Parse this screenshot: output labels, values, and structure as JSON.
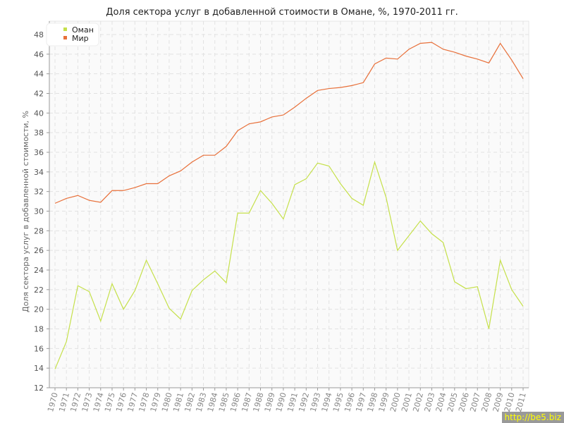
{
  "chart_data": {
    "type": "line",
    "title": "Доля сектора услуг в добавленной стоимости в Омане, %, 1970-2011 гг.",
    "ylabel": "Доля сектора услуг в добавленной стоимости, %",
    "xlabel": "",
    "ylim": [
      12,
      48
    ],
    "yticks": [
      12,
      14,
      16,
      18,
      20,
      22,
      24,
      26,
      28,
      30,
      32,
      34,
      36,
      38,
      40,
      42,
      44,
      46,
      48
    ],
    "grid": true,
    "legend": "top-left",
    "x": [
      1970,
      1971,
      1972,
      1973,
      1974,
      1975,
      1976,
      1977,
      1978,
      1979,
      1980,
      1981,
      1982,
      1983,
      1984,
      1985,
      1986,
      1987,
      1988,
      1989,
      1990,
      1991,
      1992,
      1993,
      1994,
      1995,
      1996,
      1997,
      1998,
      1999,
      2000,
      2001,
      2002,
      2003,
      2004,
      2005,
      2006,
      2007,
      2008,
      2009,
      2010,
      2011
    ],
    "series": [
      {
        "name": "Оман",
        "color": "#c5e04a",
        "values": [
          13.9,
          16.7,
          22.4,
          21.8,
          18.8,
          22.6,
          20.0,
          21.9,
          25.0,
          22.6,
          20.1,
          19.0,
          21.9,
          23.0,
          23.9,
          22.7,
          29.8,
          29.8,
          32.1,
          30.8,
          29.2,
          32.7,
          33.3,
          34.9,
          34.6,
          32.8,
          31.3,
          30.6,
          35.0,
          31.4,
          26.0,
          27.5,
          29.0,
          27.7,
          26.8,
          22.8,
          22.1,
          22.3,
          18.0,
          25.0,
          22.0,
          20.3
        ]
      },
      {
        "name": "Мир",
        "color": "#e8703a",
        "values": [
          30.8,
          31.3,
          31.6,
          31.1,
          30.9,
          32.1,
          32.1,
          32.4,
          32.8,
          32.8,
          33.6,
          34.1,
          35.0,
          35.7,
          35.7,
          36.6,
          38.2,
          38.9,
          39.1,
          39.6,
          39.8,
          40.6,
          41.5,
          42.3,
          42.5,
          42.6,
          42.8,
          43.1,
          45.0,
          45.6,
          45.5,
          46.5,
          47.1,
          47.2,
          46.5,
          46.2,
          45.8,
          45.5,
          45.1,
          47.1,
          45.4,
          43.5
        ]
      }
    ]
  },
  "watermark": "http://be5.biz"
}
